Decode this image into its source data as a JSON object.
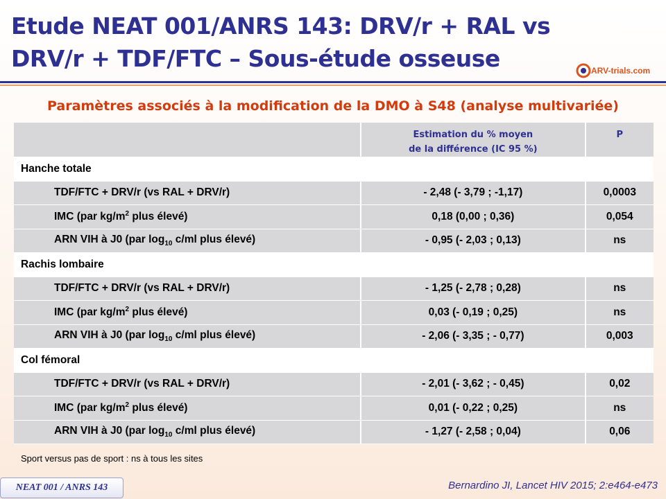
{
  "slide": {
    "title_line1": "Etude NEAT 001/ANRS 143: DRV/r + RAL vs",
    "title_line2": "DRV/r + TDF/FTC – Sous-étude osseuse",
    "subtitle": "Paramètres associés à la modification de la DMO à S48 (analyse multivariée)",
    "logo_text": "ARV-trials.com",
    "footnote": "Sport versus pas de sport : ns à tous les sites",
    "badge": "NEAT 001 / ANRS 143",
    "citation": "Bernardino JI, Lancet HIV 2015; 2:e464-e473",
    "colors": {
      "title": "#2e3192",
      "subtitle": "#d33b0c",
      "table_fill": "#d7d7d9",
      "accent": "#e8a16a"
    }
  },
  "table": {
    "header_est_line1": "Estimation du % moyen",
    "header_est_line2": "de la différence (IC 95 %)",
    "header_p": "P",
    "sections": [
      {
        "label": "Hanche totale",
        "rows": [
          {
            "param_pre": "TDF/FTC + DRV/r (vs RAL + DRV/r)",
            "est": "- 2,48 (- 3,79 ; -1,17)",
            "p": "0,0003"
          },
          {
            "param_pre": "IMC (par kg/m",
            "sup": "2",
            "param_post": " plus élevé)",
            "est": "0,18 (0,00 ; 0,36)",
            "p": "0,054"
          },
          {
            "param_pre": "ARN  VIH à J0 (par log",
            "sub": "10",
            "param_post": " c/ml plus élevé)",
            "est": "- 0,95 (- 2,03 ; 0,13)",
            "p": "ns"
          }
        ]
      },
      {
        "label": "Rachis lombaire",
        "rows": [
          {
            "param_pre": "TDF/FTC + DRV/r (vs RAL + DRV/r)",
            "est": "- 1,25 (- 2,78 ; 0,28)",
            "p": "ns"
          },
          {
            "param_pre": "IMC (par kg/m",
            "sup": "2",
            "param_post": " plus élevé)",
            "est": "0,03 (- 0,19 ; 0,25)",
            "p": "ns"
          },
          {
            "param_pre": "ARN  VIH à J0 (par log",
            "sub": "10",
            "param_post": " c/ml plus élevé)",
            "est": "- 2,06 (- 3,35 ; - 0,77)",
            "p": "0,003"
          }
        ]
      },
      {
        "label": "Col fémoral",
        "rows": [
          {
            "param_pre": "TDF/FTC + DRV/r (vs RAL + DRV/r)",
            "est": "- 2,01 (- 3,62 ; - 0,45)",
            "p": "0,02"
          },
          {
            "param_pre": "IMC (par kg/m",
            "sup": "2",
            "param_post": " plus élevé)",
            "est": "0,01 (- 0,22 ; 0,25)",
            "p": "ns"
          },
          {
            "param_pre": "ARN  VIH à J0 (par log",
            "sub": "10",
            "param_post": " c/ml plus élevé)",
            "est": "- 1,27 (- 2,58 ; 0,04)",
            "p": "0,06"
          }
        ]
      }
    ]
  }
}
